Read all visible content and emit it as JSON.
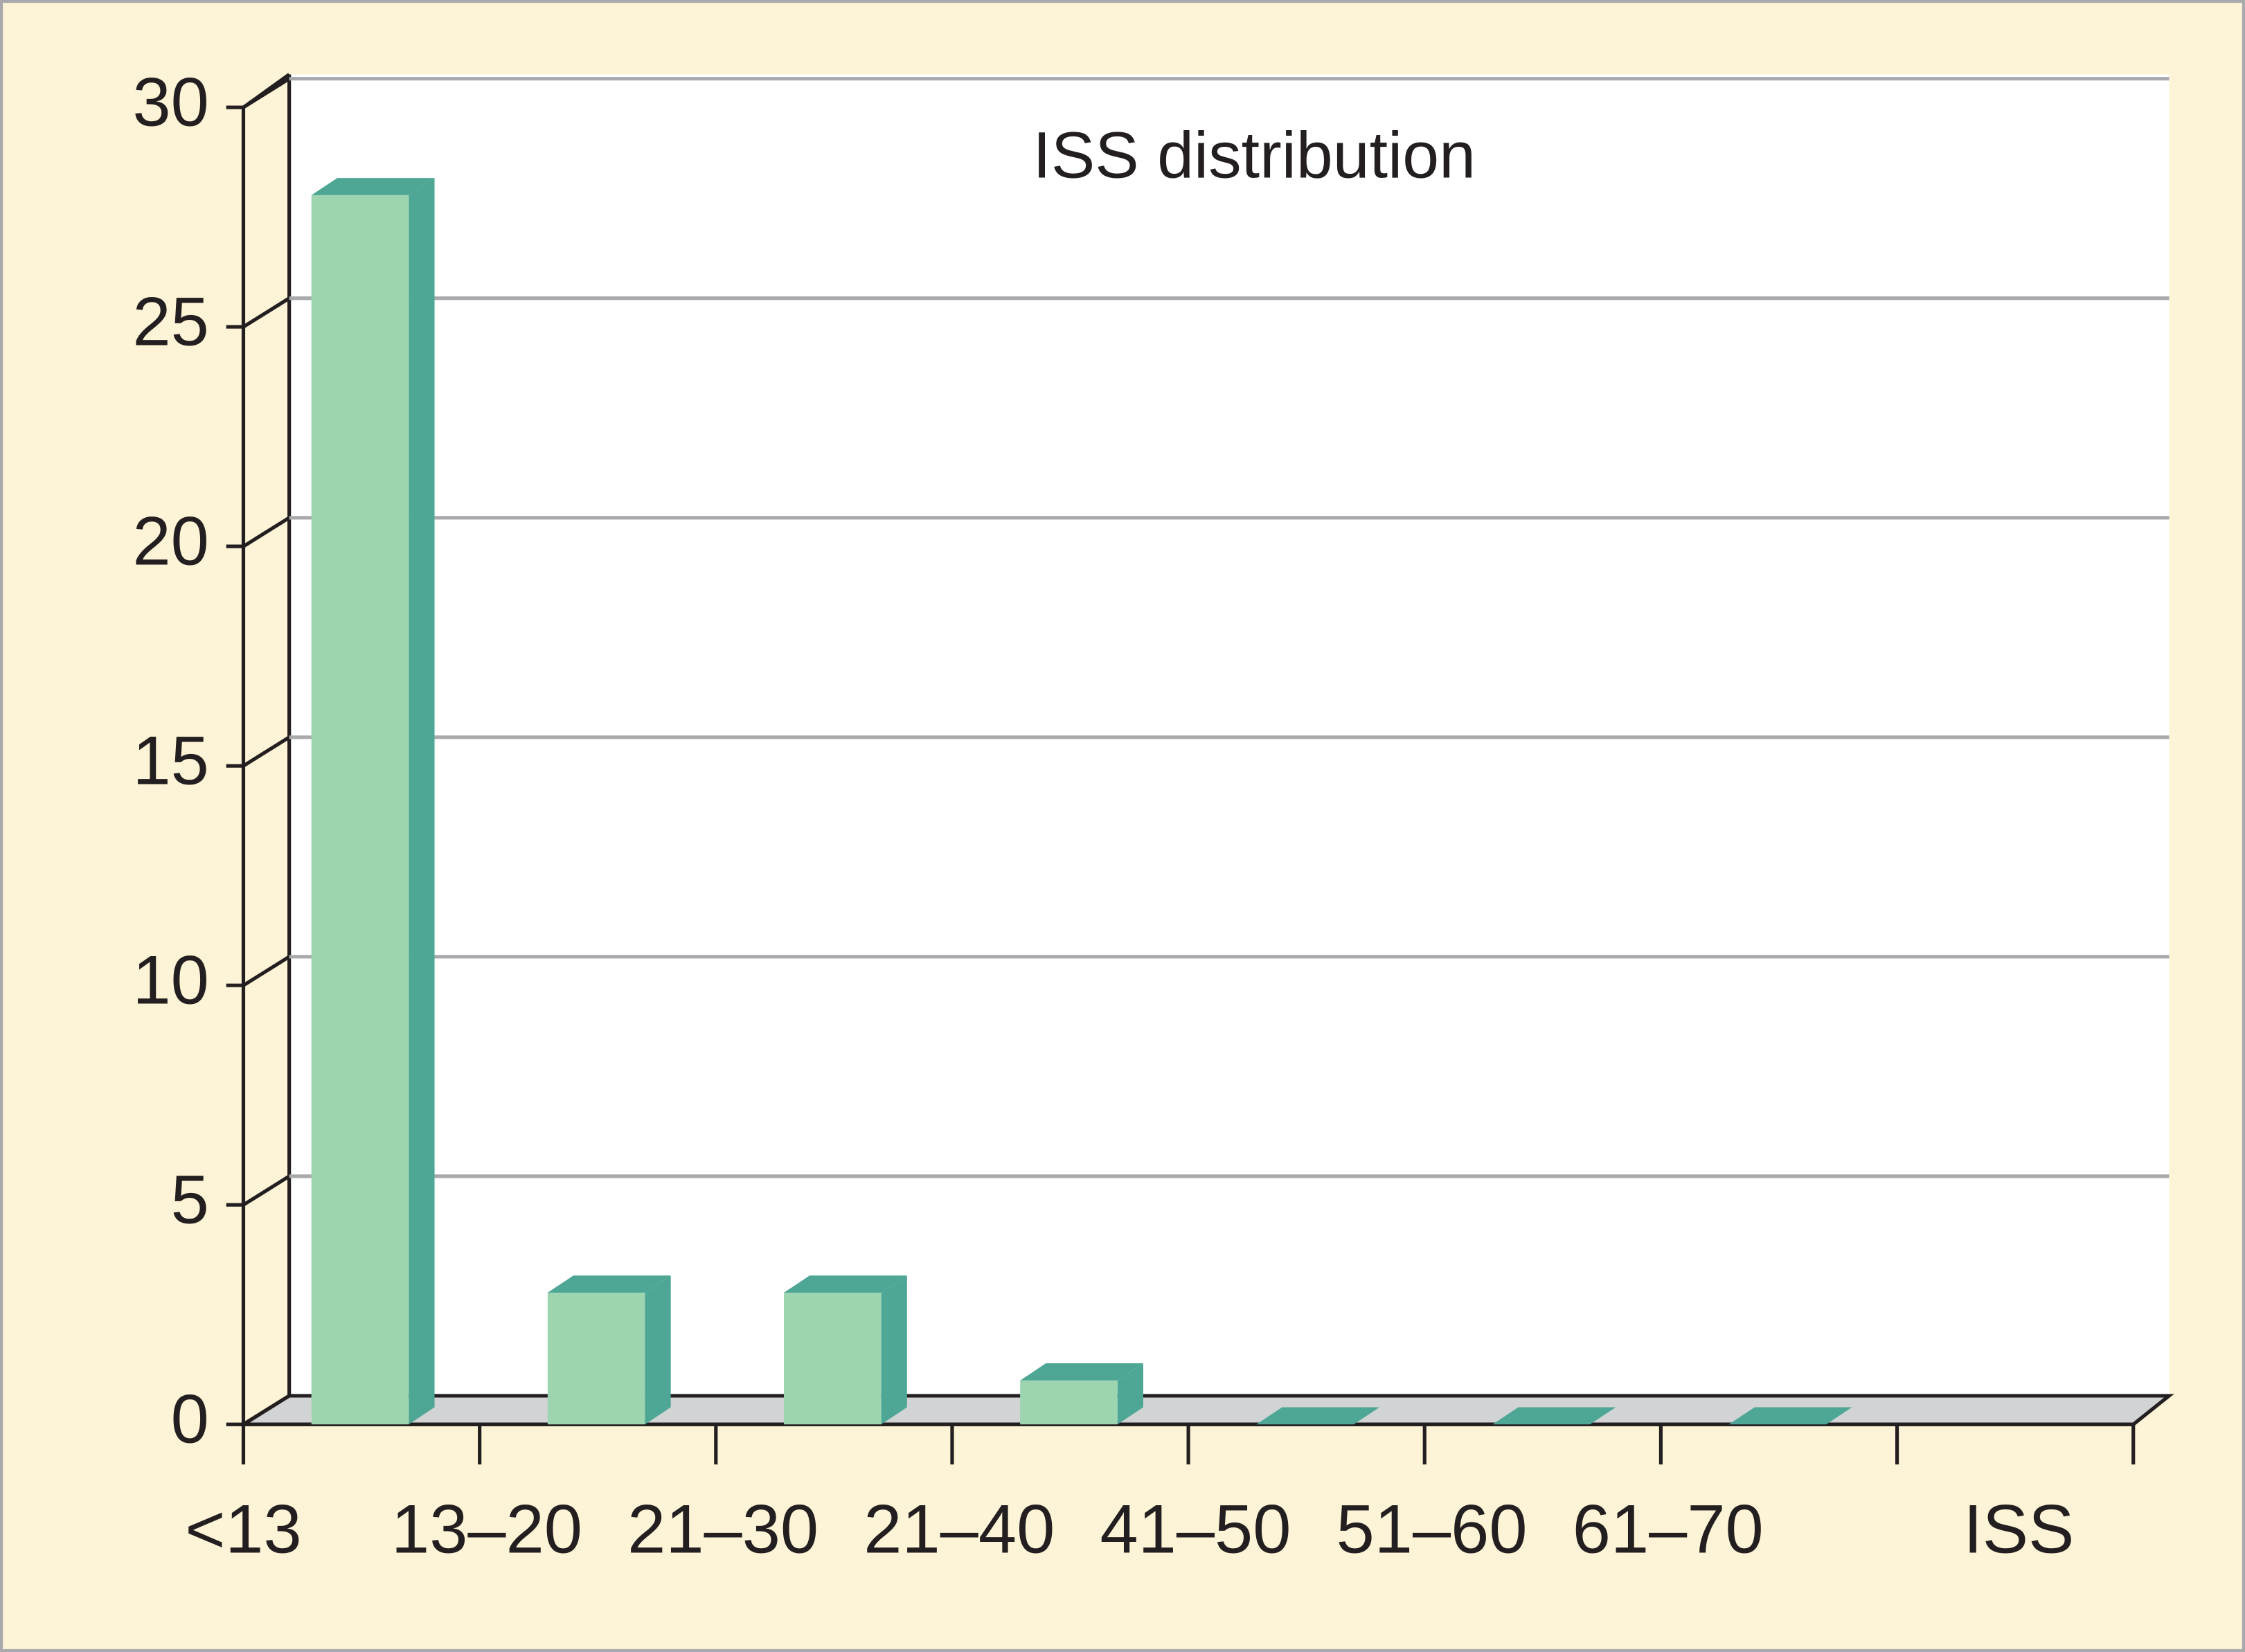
{
  "chart_data": {
    "type": "bar",
    "title": "ISS distribution",
    "x_label": "ISS",
    "categories": [
      "<13",
      "13–20",
      "21–30",
      "21–40",
      "41–50",
      "51–60",
      "61–70"
    ],
    "values": [
      28,
      3,
      3,
      1,
      0,
      0,
      0
    ],
    "color": "#9dd5b0",
    "ylim": [
      0,
      30
    ],
    "yticks": [
      0,
      5,
      10,
      15,
      20,
      25,
      30
    ],
    "grid": true
  }
}
